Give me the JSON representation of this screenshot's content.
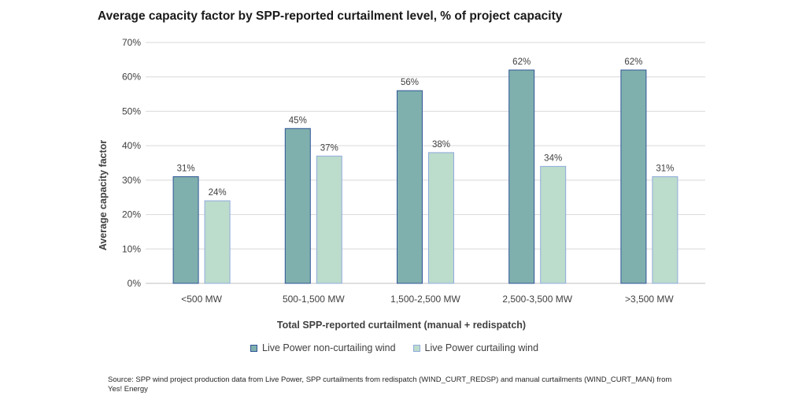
{
  "chart_data": {
    "type": "bar",
    "title": "Average capacity factor by SPP-reported curtailment level, % of project capacity",
    "xlabel": "Total SPP-reported curtailment (manual + redispatch)",
    "ylabel": "Average capacity factor",
    "categories": [
      "<500 MW",
      "500-1,500 MW",
      "1,500-2,500 MW",
      "2,500-3,500 MW",
      ">3,500 MW"
    ],
    "y_ticks": [
      "0%",
      "10%",
      "20%",
      "30%",
      "40%",
      "50%",
      "60%",
      "70%"
    ],
    "ylim": [
      0,
      70
    ],
    "grid": true,
    "legend_position": "bottom",
    "series": [
      {
        "name": "Live Power non-curtailing wind",
        "values": [
          31,
          45,
          56,
          62,
          62
        ],
        "labels": [
          "31%",
          "45%",
          "56%",
          "62%",
          "62%"
        ],
        "fill": "#7fb0ad",
        "stroke": "#2f5597"
      },
      {
        "name": "Live Power curtailing wind",
        "values": [
          24,
          37,
          38,
          34,
          31
        ],
        "labels": [
          "24%",
          "37%",
          "38%",
          "34%",
          "31%"
        ],
        "fill": "#bcdccc",
        "stroke": "#8faadc"
      }
    ]
  },
  "source": "Source: SPP wind project production data from Live Power, SPP curtailments from redispatch (WIND_CURT_REDSP) and manual curtailments (WIND_CURT_MAN) from Yes! Energy"
}
